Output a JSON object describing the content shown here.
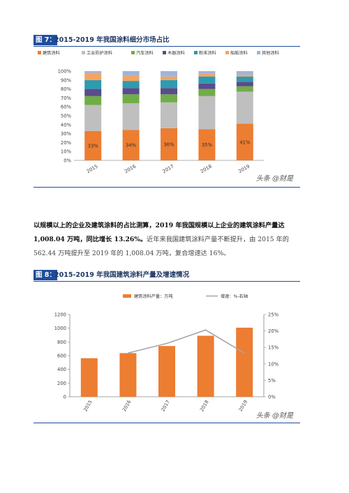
{
  "figure7": {
    "tag": "图 7：",
    "title": "2015-2019 年我国涂料细分市场占比",
    "watermark": "头条 @财是",
    "legend": [
      {
        "name": "建筑涂料",
        "color": "#ed7d31"
      },
      {
        "name": "工业防护涂料",
        "color": "#bfbfbf"
      },
      {
        "name": "汽车涂料",
        "color": "#70ad47"
      },
      {
        "name": "木器涂料",
        "color": "#5b4b8a"
      },
      {
        "name": "粉末涂料",
        "color": "#2e9bb0"
      },
      {
        "name": "船舶涂料",
        "color": "#f4a460"
      },
      {
        "name": "其他涂料",
        "color": "#9fb4dd"
      }
    ],
    "chart_data": {
      "type": "bar",
      "stacked": true,
      "categories": [
        "2015",
        "2016",
        "2017",
        "2018",
        "2019"
      ],
      "series": [
        {
          "name": "建筑涂料",
          "values": [
            33,
            34,
            36,
            35,
            41
          ]
        },
        {
          "name": "工业防护涂料",
          "values": [
            29,
            30,
            29,
            37,
            36
          ]
        },
        {
          "name": "汽车涂料",
          "values": [
            10,
            10,
            9,
            8,
            6
          ]
        },
        {
          "name": "木器涂料",
          "values": [
            8,
            7,
            7,
            6,
            5
          ]
        },
        {
          "name": "粉末涂料",
          "values": [
            10,
            8,
            9,
            8,
            6
          ]
        },
        {
          "name": "船舶涂料",
          "values": [
            8,
            6,
            4,
            3,
            2
          ]
        },
        {
          "name": "其他涂料",
          "values": [
            2,
            5,
            6,
            3,
            4
          ]
        }
      ],
      "bar_labels": [
        "33%",
        "34%",
        "36%",
        "35%",
        "41%"
      ],
      "y_ticks": [
        "0%",
        "10%",
        "20%",
        "30%",
        "40%",
        "50%",
        "60%",
        "70%",
        "80%",
        "90%",
        "100%"
      ],
      "ylim": [
        0,
        100
      ],
      "legend_position": "top"
    }
  },
  "paragraph": {
    "bold_text": "以规模以上的企业及建筑涂料的占比测算，2019 年我国规模以上企业的建筑涂料产量达 1,008.04 万吨，同比增长 13.26%。",
    "normal_text": "近年来我国建筑涂料产量不断提升，由 2015 年的 562.44 万吨提升至 2019 年的 1,008.04 万吨，复合增速达 16%。"
  },
  "figure8": {
    "tag": "图 8：",
    "title": "2015-2019 年我国建筑涂料产量及增速情况",
    "watermark": "头条 @财是",
    "legend": [
      {
        "name": "建筑涂料产量：万吨",
        "color": "#ed7d31"
      },
      {
        "name": "增速：%-右轴",
        "color": "#a6a6a6"
      }
    ],
    "chart_data": {
      "type": "bar",
      "categories": [
        "2015",
        "2016",
        "2017",
        "2018",
        "2019"
      ],
      "series": [
        {
          "name": "建筑涂料产量：万吨",
          "type": "bar",
          "axis": "left",
          "values": [
            562.44,
            637,
            740,
            890,
            1008.04
          ]
        },
        {
          "name": "增速：%-右轴",
          "type": "line",
          "axis": "right",
          "values": [
            null,
            13.3,
            16.2,
            20.3,
            13.26
          ]
        }
      ],
      "y_left": {
        "ylim": [
          0,
          1200
        ],
        "ticks": [
          "0",
          "200",
          "400",
          "600",
          "800",
          "1000",
          "1200"
        ]
      },
      "y_right": {
        "ylim": [
          0,
          25
        ],
        "ticks": [
          "0%",
          "5%",
          "10%",
          "15%",
          "20%",
          "25%"
        ]
      },
      "legend_position": "top"
    }
  }
}
